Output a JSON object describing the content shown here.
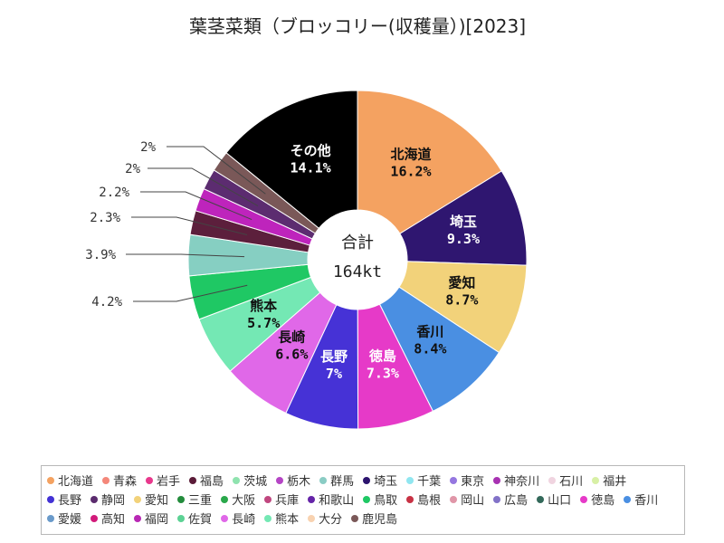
{
  "chart_data": {
    "type": "pie",
    "donut": true,
    "title": "葉茎菜類（ブロッコリー(収穫量）)[2023]",
    "unit": "%",
    "total_label": "合計",
    "total_value": "164kt",
    "slices": [
      {
        "label": "北海道",
        "value": 16.2,
        "color": "#F4A261"
      },
      {
        "label": "埼玉",
        "value": 9.3,
        "color": "#2F1670"
      },
      {
        "label": "愛知",
        "value": 8.7,
        "color": "#F2D27A"
      },
      {
        "label": "香川",
        "value": 8.4,
        "color": "#4A8FE2"
      },
      {
        "label": "徳島",
        "value": 7.3,
        "color": "#E63AC8"
      },
      {
        "label": "長野",
        "value": 7,
        "color": "#4632D6"
      },
      {
        "label": "長崎",
        "value": 6.6,
        "color": "#E068E8"
      },
      {
        "label": "熊本",
        "value": 5.7,
        "color": "#74E8B4"
      },
      {
        "value": 4.2,
        "color": "#1FC864"
      },
      {
        "value": 3.9,
        "color": "#86CFC2"
      },
      {
        "value": 2.3,
        "color": "#5C1F3C"
      },
      {
        "value": 2.2,
        "color": "#BE24BC"
      },
      {
        "value": 2,
        "color": "#5C2C70"
      },
      {
        "value": 2,
        "color": "#7A5858"
      },
      {
        "label": "その他",
        "value": 14.1,
        "color": "#000000"
      }
    ],
    "legend": {
      "placement": "bottom",
      "rows": [
        [
          {
            "name": "北海道",
            "color": "#F4A261"
          },
          {
            "name": "青森",
            "color": "#F4877A"
          },
          {
            "name": "岩手",
            "color": "#E8388C"
          },
          {
            "name": "福島",
            "color": "#5B1B38"
          },
          {
            "name": "茨城",
            "color": "#8FE3AF"
          },
          {
            "name": "栃木",
            "color": "#B545C5"
          },
          {
            "name": "群馬",
            "color": "#8ACCC4"
          },
          {
            "name": "埼玉",
            "color": "#2C146E"
          },
          {
            "name": "千葉",
            "color": "#90E6F0"
          },
          {
            "name": "東京",
            "color": "#9577E0"
          },
          {
            "name": "神奈川",
            "color": "#A832B2"
          },
          {
            "name": "石川",
            "color": "#F0D4E0"
          },
          {
            "name": "福井",
            "color": "#D8F0A6"
          }
        ],
        [
          {
            "name": "長野",
            "color": "#4332D5"
          },
          {
            "name": "静岡",
            "color": "#5B2B6E"
          },
          {
            "name": "愛知",
            "color": "#F2D27A"
          },
          {
            "name": "三重",
            "color": "#238C3C"
          },
          {
            "name": "大阪",
            "color": "#2AA84B"
          },
          {
            "name": "兵庫",
            "color": "#C0477F"
          },
          {
            "name": "和歌山",
            "color": "#6524A8"
          },
          {
            "name": "鳥取",
            "color": "#1FC864"
          },
          {
            "name": "島根",
            "color": "#C83244"
          },
          {
            "name": "岡山",
            "color": "#E096A8"
          },
          {
            "name": "広島",
            "color": "#8272C8"
          },
          {
            "name": "山口",
            "color": "#33695A"
          },
          {
            "name": "徳島",
            "color": "#E63AC8"
          },
          {
            "name": "香川",
            "color": "#4A8FE2"
          }
        ],
        [
          {
            "name": "愛媛",
            "color": "#6A9ACA"
          },
          {
            "name": "高知",
            "color": "#D21A7A"
          },
          {
            "name": "福岡",
            "color": "#B828B4"
          },
          {
            "name": "佐賀",
            "color": "#5CD294"
          },
          {
            "name": "長崎",
            "color": "#E068E8"
          },
          {
            "name": "熊本",
            "color": "#74E8B4"
          },
          {
            "name": "大分",
            "color": "#F8D2B0"
          },
          {
            "name": "鹿児島",
            "color": "#7A5858"
          }
        ]
      ]
    }
  }
}
